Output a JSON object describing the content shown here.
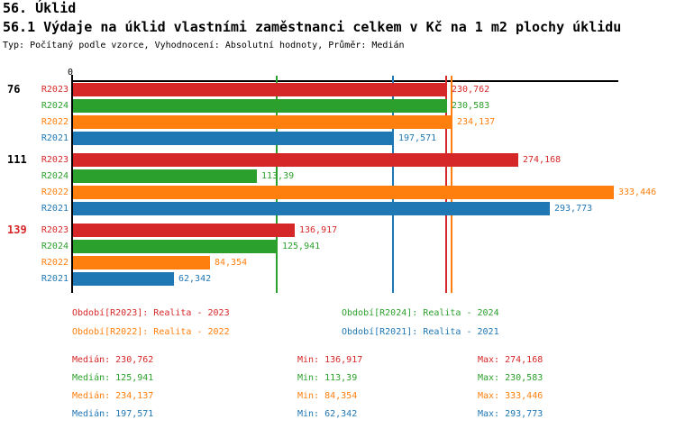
{
  "header": {
    "title1": "56. Úklid",
    "title2": "56.1 Výdaje na úklid vlastními zaměstnanci celkem v Kč na 1 m2 plochy úklidu",
    "subtitle": "Typ: Počítaný podle vzorce, Vyhodnocení: Absolutní hodnoty, Průměr: Medián"
  },
  "colors": {
    "R2023": "#d62728",
    "R2024": "#2ca02c",
    "R2022": "#ff7f0e",
    "R2021": "#1f77b4",
    "axis": "#000000"
  },
  "chart_data": {
    "type": "bar",
    "orientation": "horizontal",
    "axis_origin_label": "0",
    "xlim": [
      0,
      337
    ],
    "grid": false,
    "series_order": [
      "R2023",
      "R2024",
      "R2022",
      "R2021"
    ],
    "groups": [
      {
        "label": "76",
        "label_color": "#000000",
        "bars": [
          {
            "series": "R2023",
            "value": 230.762,
            "display": "230,762"
          },
          {
            "series": "R2024",
            "value": 230.583,
            "display": "230,583"
          },
          {
            "series": "R2022",
            "value": 234.137,
            "display": "234,137"
          },
          {
            "series": "R2021",
            "value": 197.571,
            "display": "197,571"
          }
        ]
      },
      {
        "label": "111",
        "label_color": "#000000",
        "bars": [
          {
            "series": "R2023",
            "value": 274.168,
            "display": "274,168"
          },
          {
            "series": "R2024",
            "value": 113.39,
            "display": "113,39"
          },
          {
            "series": "R2022",
            "value": 333.446,
            "display": "333,446"
          },
          {
            "series": "R2021",
            "value": 293.773,
            "display": "293,773"
          }
        ]
      },
      {
        "label": "139",
        "label_color": "#d62728",
        "bars": [
          {
            "series": "R2023",
            "value": 136.917,
            "display": "136,917"
          },
          {
            "series": "R2024",
            "value": 125.941,
            "display": "125,941"
          },
          {
            "series": "R2022",
            "value": 84.354,
            "display": "84,354"
          },
          {
            "series": "R2021",
            "value": 62.342,
            "display": "62,342"
          }
        ]
      }
    ],
    "median_lines": [
      {
        "series": "R2024",
        "value": 125.941
      },
      {
        "series": "R2021",
        "value": 197.571
      },
      {
        "series": "R2023",
        "value": 230.762
      },
      {
        "series": "R2022",
        "value": 234.137
      }
    ]
  },
  "legend": [
    {
      "series": "R2023",
      "label": "Období[R2023]: Realita - 2023"
    },
    {
      "series": "R2024",
      "label": "Období[R2024]: Realita - 2024"
    },
    {
      "series": "R2022",
      "label": "Období[R2022]: Realita - 2022"
    },
    {
      "series": "R2021",
      "label": "Období[R2021]: Realita - 2021"
    }
  ],
  "stats": [
    {
      "series": "R2023",
      "median": "Medián: 230,762",
      "min": "Min: 136,917",
      "max": "Max: 274,168"
    },
    {
      "series": "R2024",
      "median": "Medián: 125,941",
      "min": "Min: 113,39",
      "max": "Max: 230,583"
    },
    {
      "series": "R2022",
      "median": "Medián: 234,137",
      "min": "Min: 84,354",
      "max": "Max: 333,446"
    },
    {
      "series": "R2021",
      "median": "Medián: 197,571",
      "min": "Min: 62,342",
      "max": "Max: 293,773"
    }
  ]
}
